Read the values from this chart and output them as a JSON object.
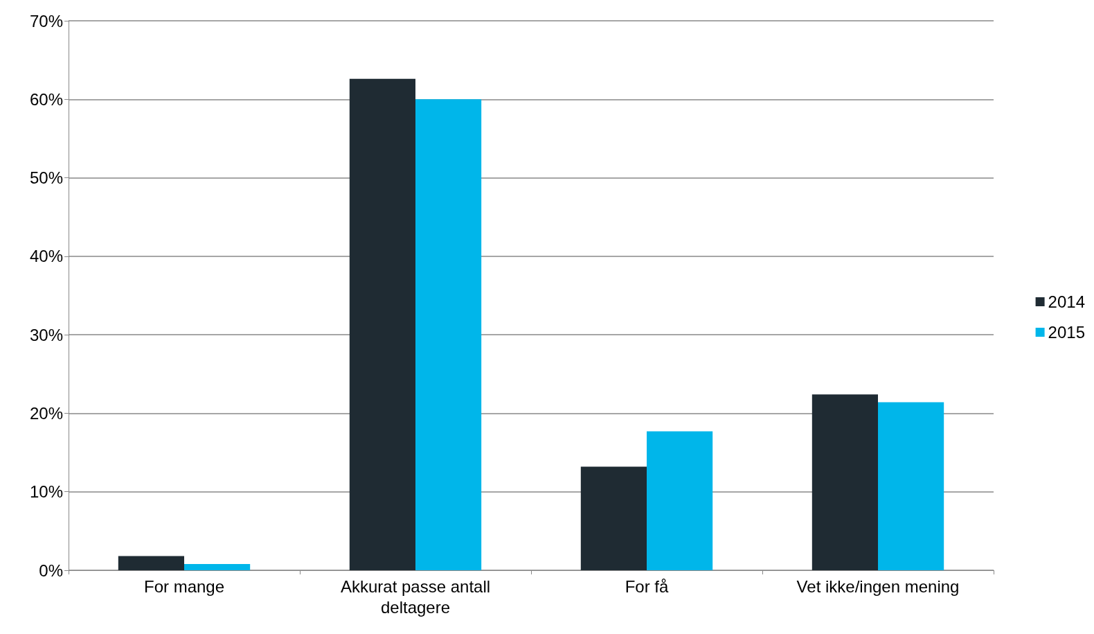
{
  "chart_data": {
    "type": "bar",
    "categories": [
      "For mange",
      "Akkurat passe antall deltagere",
      "For få",
      "Vet ikke/ingen mening"
    ],
    "series": [
      {
        "name": "2014",
        "color": "#1f2b33",
        "values": [
          1.8,
          62.6,
          13.2,
          22.4
        ]
      },
      {
        "name": "2015",
        "color": "#00b6ea",
        "values": [
          0.8,
          60.0,
          17.7,
          21.4
        ]
      }
    ],
    "ylim": [
      0,
      70
    ],
    "yticks": [
      {
        "value": 0,
        "label": "0%"
      },
      {
        "value": 10,
        "label": "10%"
      },
      {
        "value": 20,
        "label": "20%"
      },
      {
        "value": 30,
        "label": "30%"
      },
      {
        "value": 40,
        "label": "40%"
      },
      {
        "value": 50,
        "label": "50%"
      },
      {
        "value": 60,
        "label": "60%"
      },
      {
        "value": 70,
        "label": "70%"
      }
    ],
    "grid": "y",
    "legend": "right"
  }
}
